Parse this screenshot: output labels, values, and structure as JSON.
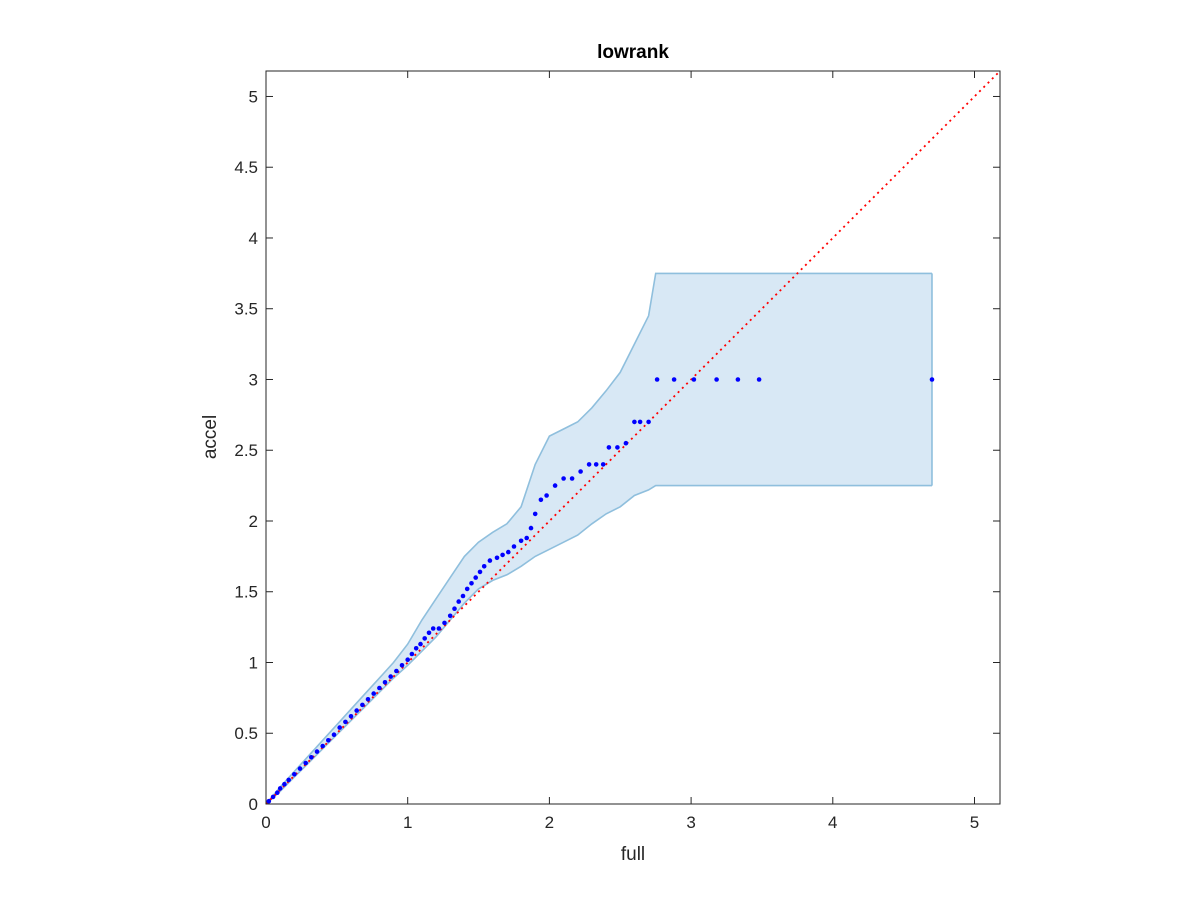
{
  "chart_data": {
    "type": "scatter",
    "title": "lowrank",
    "xlabel": "full",
    "ylabel": "accel",
    "xlim": [
      0,
      5.18
    ],
    "ylim": [
      0,
      5.18
    ],
    "xticks": [
      0,
      1,
      2,
      3,
      4,
      5
    ],
    "xtick_labels": [
      "0",
      "1",
      "2",
      "3",
      "4",
      "5"
    ],
    "yticks": [
      0,
      0.5,
      1,
      1.5,
      2,
      2.5,
      3,
      3.5,
      4,
      4.5,
      5
    ],
    "ytick_labels": [
      "0",
      "0.5",
      "1",
      "1.5",
      "2",
      "2.5",
      "3",
      "3.5",
      "4",
      "4.5",
      "5"
    ],
    "grid": false,
    "reference_line": {
      "x": [
        0,
        5.18
      ],
      "y": [
        0,
        5.18
      ],
      "color": "#ff0000",
      "style": "dotted"
    },
    "confidence_band": {
      "fill": "#d8e8f5",
      "edge": "#8fbfdd",
      "x": [
        0,
        0.1,
        0.2,
        0.3,
        0.4,
        0.5,
        0.6,
        0.7,
        0.8,
        0.9,
        1.0,
        1.1,
        1.2,
        1.3,
        1.4,
        1.5,
        1.6,
        1.7,
        1.8,
        1.9,
        2.0,
        2.1,
        2.2,
        2.3,
        2.4,
        2.5,
        2.6,
        2.7,
        2.75,
        4.7
      ],
      "upper": [
        0,
        0.12,
        0.23,
        0.34,
        0.45,
        0.56,
        0.67,
        0.78,
        0.89,
        1.0,
        1.13,
        1.3,
        1.45,
        1.6,
        1.75,
        1.85,
        1.92,
        1.98,
        2.1,
        2.4,
        2.6,
        2.65,
        2.7,
        2.8,
        2.92,
        3.05,
        3.25,
        3.45,
        3.75,
        3.75
      ],
      "lower": [
        0,
        0.09,
        0.19,
        0.29,
        0.39,
        0.49,
        0.59,
        0.69,
        0.79,
        0.89,
        0.98,
        1.08,
        1.18,
        1.3,
        1.42,
        1.52,
        1.58,
        1.62,
        1.68,
        1.75,
        1.8,
        1.85,
        1.9,
        1.98,
        2.05,
        2.1,
        2.18,
        2.22,
        2.25,
        2.25
      ]
    },
    "series": [
      {
        "color": "#0000ff",
        "x": [
          0.02,
          0.05,
          0.08,
          0.1,
          0.13,
          0.16,
          0.2,
          0.24,
          0.28,
          0.32,
          0.36,
          0.4,
          0.44,
          0.48,
          0.52,
          0.56,
          0.6,
          0.64,
          0.68,
          0.72,
          0.76,
          0.8,
          0.84,
          0.88,
          0.92,
          0.96,
          1.0,
          1.03,
          1.06,
          1.09,
          1.12,
          1.15,
          1.18,
          1.22,
          1.26,
          1.3,
          1.33,
          1.36,
          1.39,
          1.42,
          1.45,
          1.48,
          1.51,
          1.54,
          1.58,
          1.63,
          1.67,
          1.71,
          1.75,
          1.8,
          1.84,
          1.87,
          1.9,
          1.94,
          1.98,
          2.04,
          2.1,
          2.16,
          2.22,
          2.28,
          2.33,
          2.38,
          2.42,
          2.48,
          2.54,
          2.6,
          2.64,
          2.7,
          2.76,
          2.88,
          3.02,
          3.18,
          3.33,
          3.48,
          4.7
        ],
        "y": [
          0.02,
          0.05,
          0.08,
          0.11,
          0.14,
          0.17,
          0.21,
          0.25,
          0.29,
          0.33,
          0.37,
          0.41,
          0.45,
          0.49,
          0.54,
          0.58,
          0.62,
          0.66,
          0.7,
          0.74,
          0.78,
          0.82,
          0.86,
          0.9,
          0.94,
          0.98,
          1.02,
          1.06,
          1.1,
          1.13,
          1.17,
          1.21,
          1.24,
          1.24,
          1.28,
          1.33,
          1.38,
          1.43,
          1.47,
          1.52,
          1.56,
          1.6,
          1.64,
          1.68,
          1.72,
          1.74,
          1.76,
          1.78,
          1.82,
          1.86,
          1.88,
          1.95,
          2.05,
          2.15,
          2.18,
          2.25,
          2.3,
          2.3,
          2.35,
          2.4,
          2.4,
          2.4,
          2.52,
          2.52,
          2.55,
          2.7,
          2.7,
          2.7,
          3.0,
          3.0,
          3.0,
          3.0,
          3.0,
          3.0,
          3.0
        ]
      }
    ]
  }
}
